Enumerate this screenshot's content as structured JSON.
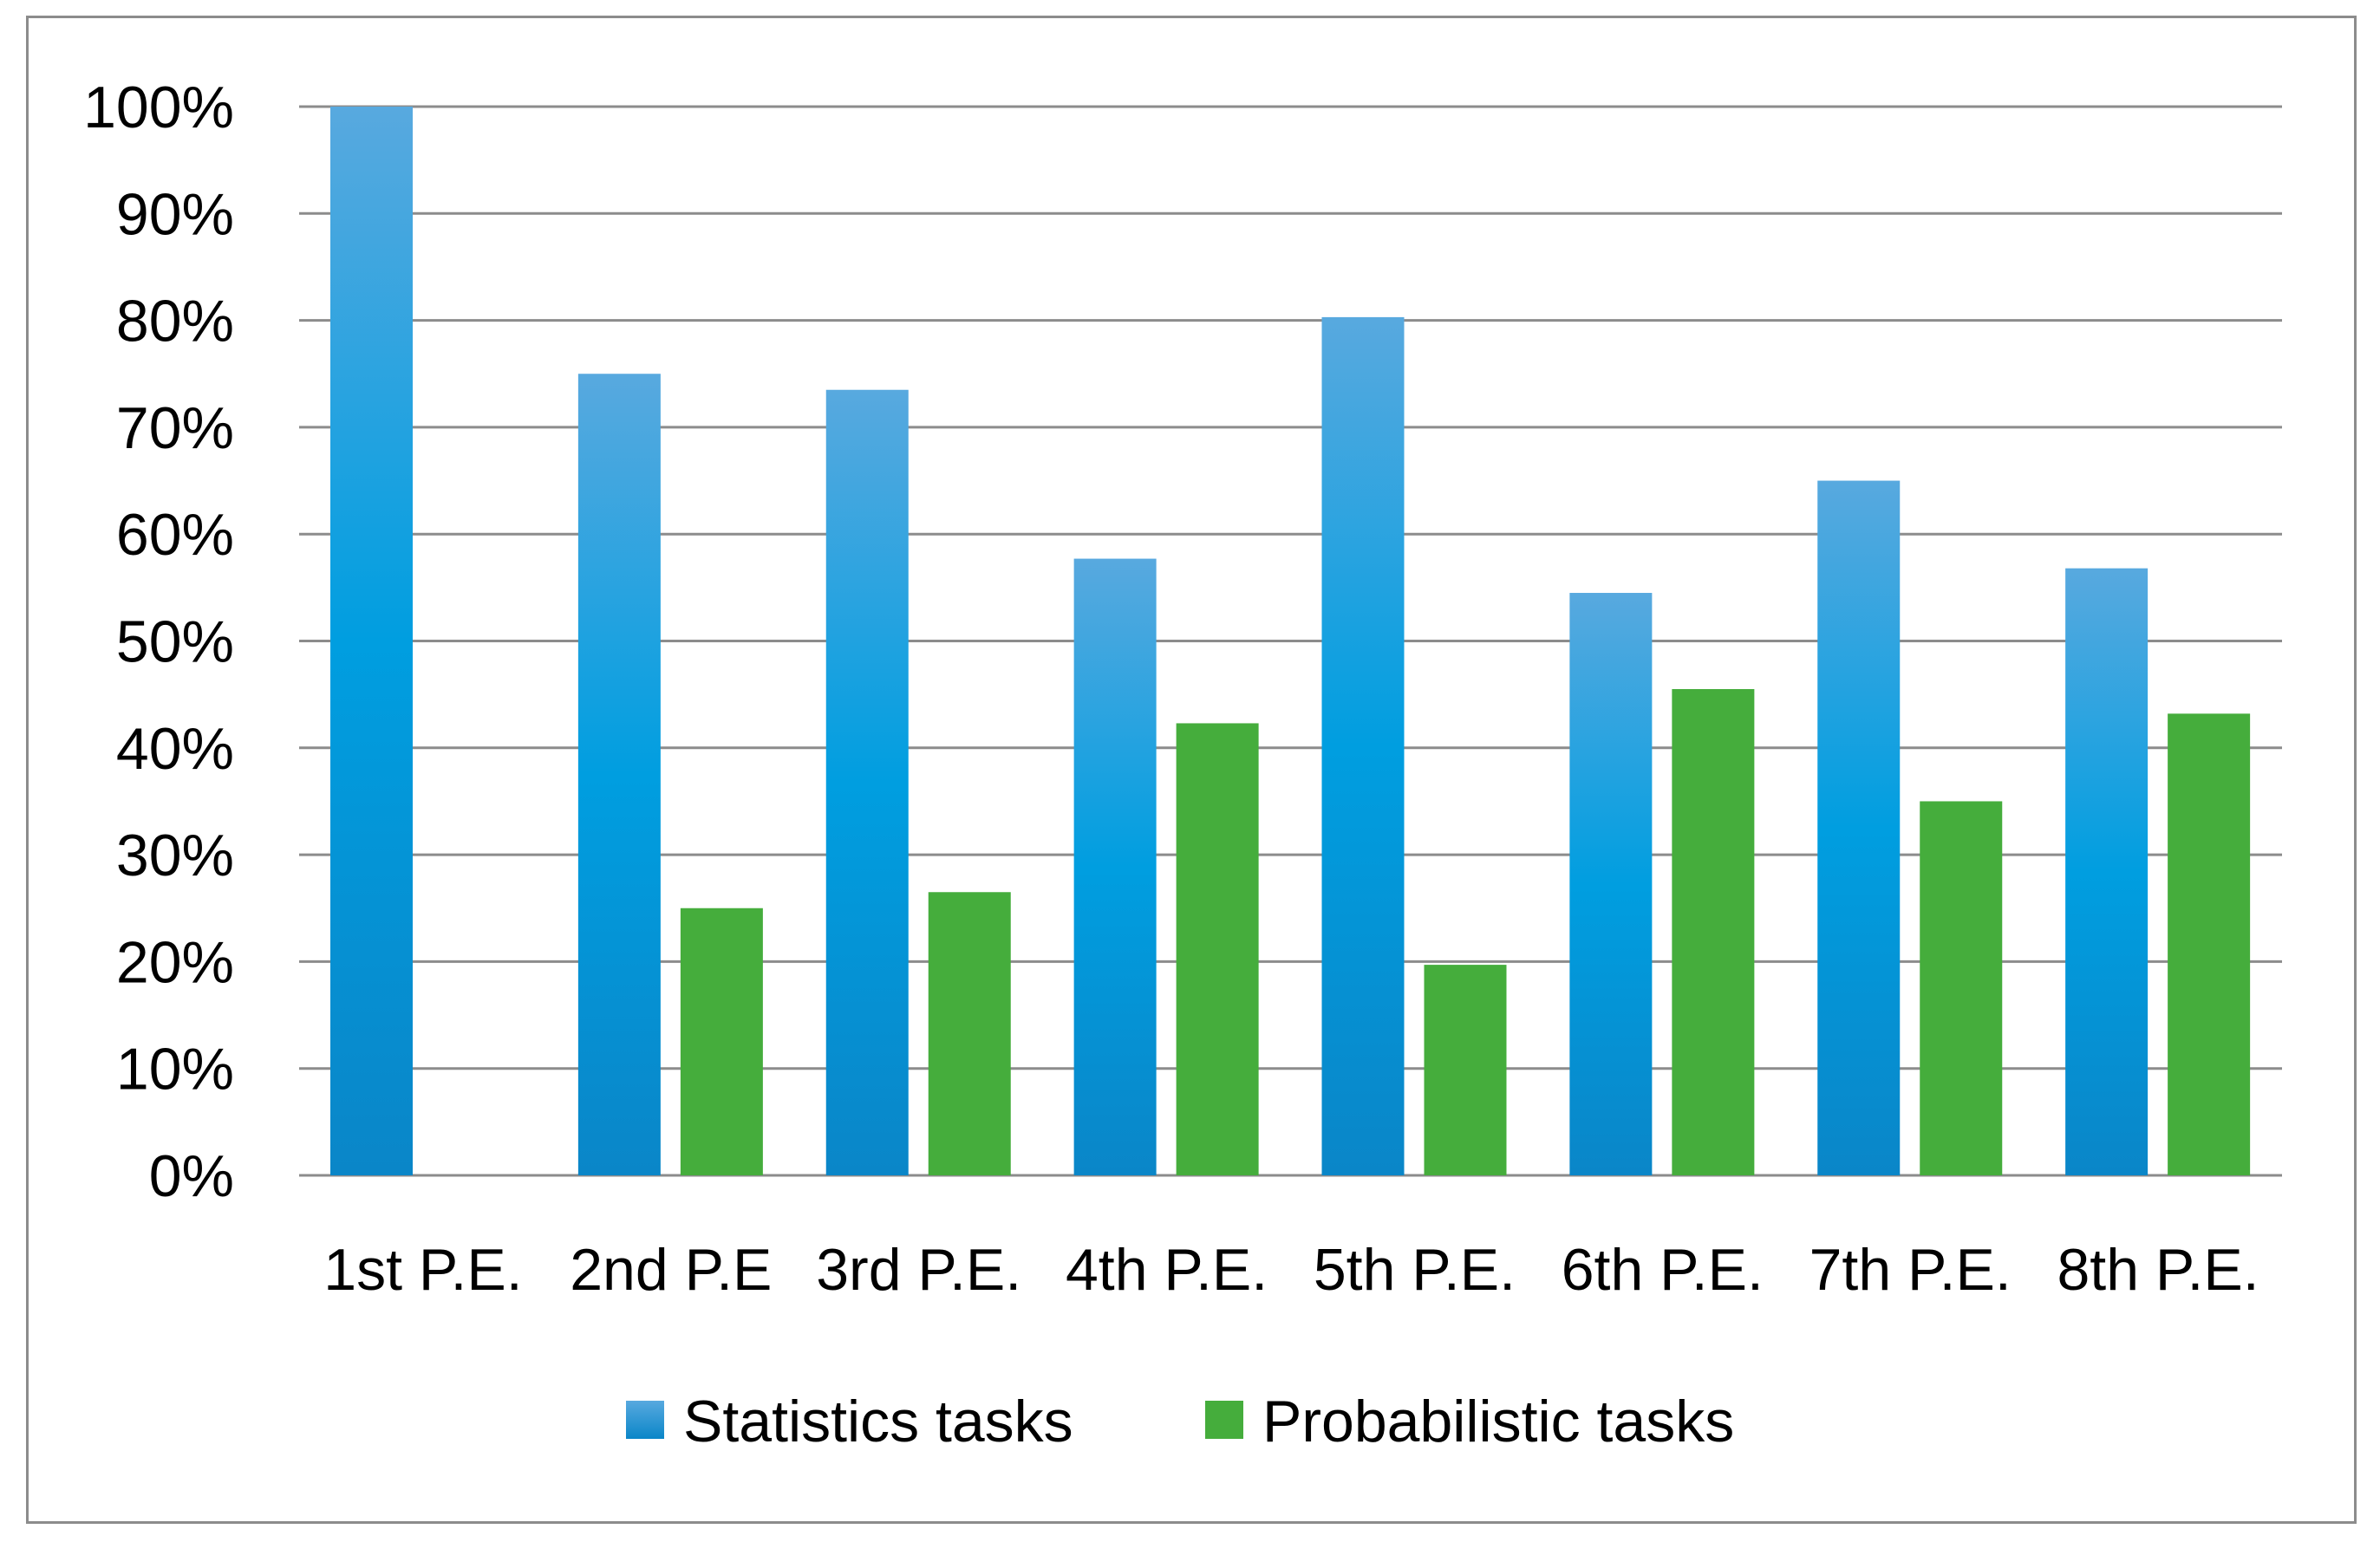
{
  "chart_data": {
    "type": "bar",
    "title": "",
    "xlabel": "",
    "ylabel": "",
    "ylim": [
      0,
      100
    ],
    "y_ticks": [
      "0%",
      "10%",
      "20%",
      "30%",
      "40%",
      "50%",
      "60%",
      "70%",
      "80%",
      "90%",
      "100%"
    ],
    "y_tick_values": [
      0,
      10,
      20,
      30,
      40,
      50,
      60,
      70,
      80,
      90,
      100
    ],
    "grid": true,
    "legend_position": "bottom",
    "categories": [
      "1st P.E.",
      "2nd P.E",
      "3rd P.E.",
      "4th P.E.",
      "5th P.E.",
      "6th P.E.",
      "7th P.E.",
      "8th P.E."
    ],
    "series": [
      {
        "name": "Statistics tasks",
        "color": "#1f9bd9",
        "values": [
          100,
          75,
          73.5,
          57.7,
          80.3,
          54.5,
          65,
          56.8
        ]
      },
      {
        "name": "Probabilistic tasks",
        "color": "#45ad3c",
        "values": [
          null,
          25,
          26.5,
          42.3,
          19.7,
          45.5,
          35,
          43.2
        ]
      }
    ]
  }
}
